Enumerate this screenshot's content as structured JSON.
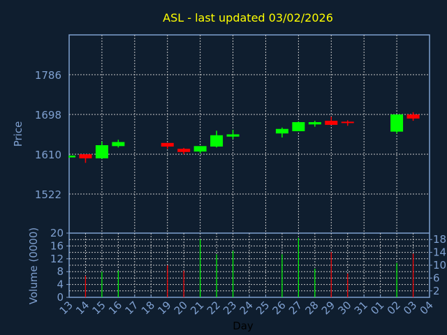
{
  "chart_data": {
    "type": "candlestick",
    "title": "ASL - last updated 03/02/2026",
    "xlabel": "Day",
    "ylabel": "Price",
    "volume_label": "Volume (0000)",
    "x_ticks": [
      "13",
      "14",
      "15",
      "16",
      "17",
      "18",
      "19",
      "20",
      "21",
      "22",
      "23",
      "24",
      "25",
      "26",
      "27",
      "28",
      "29",
      "30",
      "31",
      "01",
      "02",
      "03",
      "04"
    ],
    "price_ticks": [
      1522,
      1610,
      1698,
      1786
    ],
    "price_range": [
      1435,
      1870
    ],
    "volume_ticks": [
      0,
      2,
      4,
      6,
      8,
      10,
      12,
      14,
      16,
      18,
      20
    ],
    "volume_range": [
      0,
      20
    ],
    "grid": true,
    "colors": {
      "up": "#00ff00",
      "down": "#ff0000",
      "title": "#ffff00",
      "axis": "#7fa0d0",
      "grid": "#c8c8c8",
      "background": "#0f1e2f"
    },
    "candles": [
      {
        "day": "13",
        "open": 1603,
        "high": 1607,
        "low": 1602,
        "close": 1607,
        "volume": 0
      },
      {
        "day": "14",
        "open": 1610,
        "high": 1610,
        "low": 1591,
        "close": 1601,
        "volume": 6.7
      },
      {
        "day": "15",
        "open": 1601,
        "high": 1638,
        "low": 1600,
        "close": 1630,
        "volume": 8.0
      },
      {
        "day": "16",
        "open": 1628,
        "high": 1642,
        "low": 1625,
        "close": 1637,
        "volume": 8.3
      },
      {
        "day": "19",
        "open": 1635,
        "high": 1635,
        "low": 1622,
        "close": 1627,
        "volume": 10.0
      },
      {
        "day": "20",
        "open": 1622,
        "high": 1624,
        "low": 1610,
        "close": 1615,
        "volume": 8.3
      },
      {
        "day": "21",
        "open": 1616,
        "high": 1628,
        "low": 1612,
        "close": 1628,
        "volume": 18.1
      },
      {
        "day": "22",
        "open": 1627,
        "high": 1662,
        "low": 1625,
        "close": 1652,
        "volume": 13.4
      },
      {
        "day": "23",
        "open": 1649,
        "high": 1664,
        "low": 1644,
        "close": 1654,
        "volume": 14.5
      },
      {
        "day": "26",
        "open": 1656,
        "high": 1669,
        "low": 1647,
        "close": 1666,
        "volume": 13.4
      },
      {
        "day": "27",
        "open": 1661,
        "high": 1682,
        "low": 1661,
        "close": 1681,
        "volume": 18.5
      },
      {
        "day": "28",
        "open": 1676,
        "high": 1684,
        "low": 1671,
        "close": 1681,
        "volume": 8.9
      },
      {
        "day": "29",
        "open": 1684,
        "high": 1693,
        "low": 1675,
        "close": 1675,
        "volume": 14.1
      },
      {
        "day": "30",
        "open": 1682,
        "high": 1685,
        "low": 1673,
        "close": 1679,
        "volume": 7.4
      },
      {
        "day": "02",
        "open": 1660,
        "high": 1698,
        "low": 1656,
        "close": 1698,
        "volume": 10.7
      },
      {
        "day": "03",
        "open": 1698,
        "high": 1703,
        "low": 1684,
        "close": 1689,
        "volume": 13.6
      }
    ]
  }
}
